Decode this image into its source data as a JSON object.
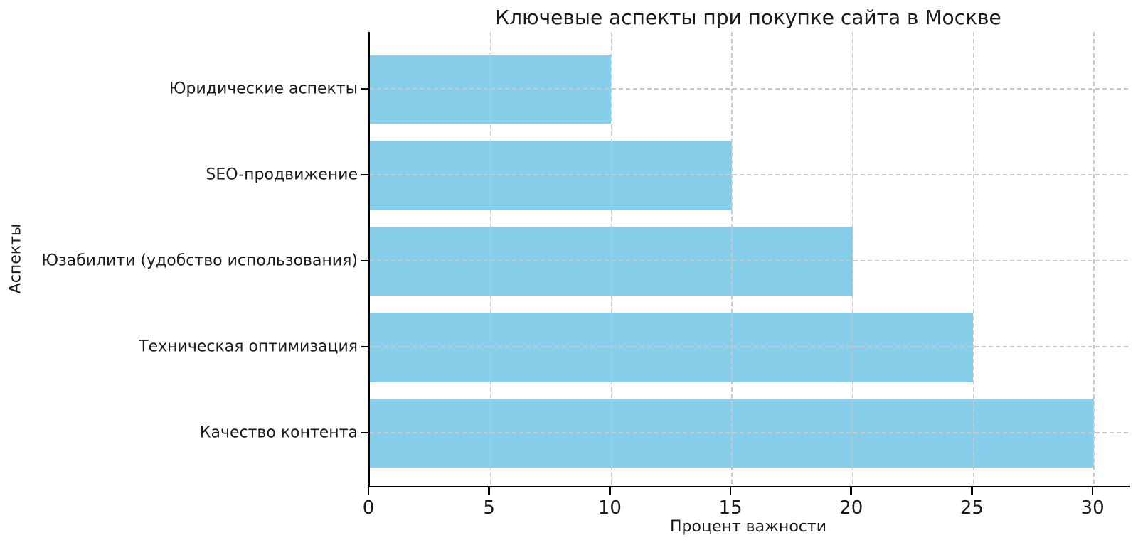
{
  "chart_data": {
    "type": "bar",
    "orientation": "horizontal",
    "title": "Ключевые аспекты при покупке сайта в Москве",
    "xlabel": "Процент важности",
    "ylabel": "Аспекты",
    "categories": [
      "Юридические аспекты",
      "SEO-продвижение",
      "Юзабилити (удобство использования)",
      "Техническая оптимизация",
      "Качество контента"
    ],
    "values": [
      10,
      15,
      20,
      25,
      30
    ],
    "xticks": [
      0,
      5,
      10,
      15,
      20,
      25,
      30
    ],
    "xlim": [
      0,
      31.5
    ],
    "bar_color": "#87CEEB",
    "grid_style": "dashed",
    "grid_color": "#c9c9c9",
    "axis_color": "#000000",
    "text_color": "#1a1a1a",
    "legend_position": "none"
  }
}
